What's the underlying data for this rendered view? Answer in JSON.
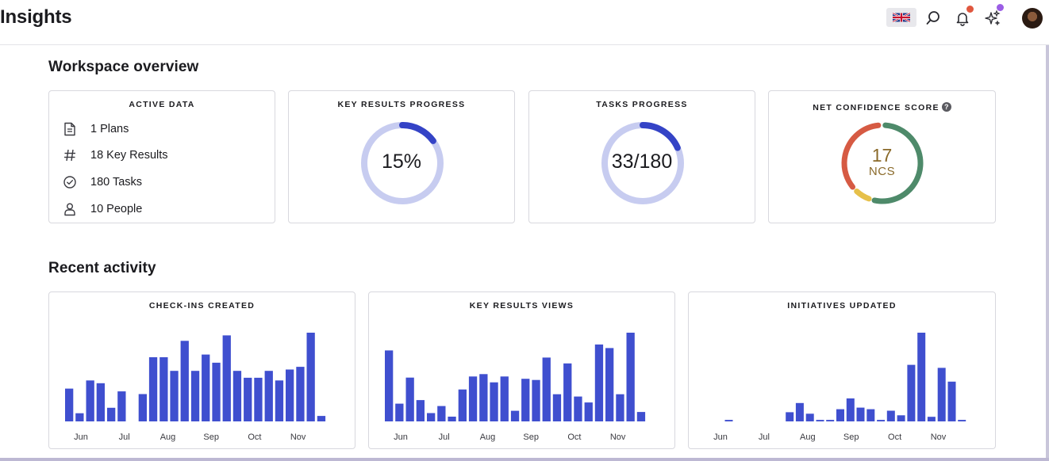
{
  "header": {
    "title": "Insights",
    "icons": {
      "language": "uk-flag-icon",
      "search": "search-icon",
      "notifications": "bell-icon",
      "ai": "sparkles-icon",
      "profile": "avatar"
    },
    "notification_dot_color": "#e0573e",
    "ai_dot_color": "#9b5de5"
  },
  "workspace_overview": {
    "title": "Workspace overview",
    "active_data": {
      "title": "ACTIVE DATA",
      "items": [
        {
          "icon": "document-icon",
          "label": "1 Plans"
        },
        {
          "icon": "hash-icon",
          "label": "18 Key Results"
        },
        {
          "icon": "check-circle-icon",
          "label": "180 Tasks"
        },
        {
          "icon": "person-icon",
          "label": "10 People"
        }
      ]
    },
    "key_results_progress": {
      "title": "KEY RESULTS PROGRESS",
      "value_text": "15%",
      "fraction": 0.15
    },
    "tasks_progress": {
      "title": "TASKS PROGRESS",
      "value_text": "33/180",
      "fraction": 0.1833
    },
    "net_confidence": {
      "title": "NET CONFIDENCE SCORE",
      "help_icon": "help-circle-icon",
      "help_glyph": "?",
      "score": "17",
      "unit": "NCS",
      "segments": [
        {
          "label": "green",
          "fraction": 0.52,
          "color": "#4e8a6a"
        },
        {
          "label": "yellow",
          "fraction": 0.06,
          "color": "#e6c04a"
        },
        {
          "label": "red",
          "fraction": 0.34,
          "color": "#d65a43"
        }
      ]
    }
  },
  "recent_activity": {
    "title": "Recent activity",
    "bar_color": "#3f4fcf",
    "charts": [
      {
        "id": "checkins",
        "title": "CHECK-INS CREATED",
        "months": [
          "Jun",
          "Jul",
          "Aug",
          "Sep",
          "Oct",
          "Nov"
        ],
        "values": [
          24,
          6,
          30,
          28,
          10,
          22,
          0,
          20,
          47,
          47,
          37,
          59,
          37,
          49,
          43,
          63,
          37,
          32,
          32,
          37,
          30,
          38,
          40,
          65,
          4
        ]
      },
      {
        "id": "kr_views",
        "title": "KEY RESULTS VIEWS",
        "months": [
          "Jun",
          "Jul",
          "Aug",
          "Sep",
          "Oct",
          "Nov"
        ],
        "values": [
          60,
          15,
          37,
          18,
          7,
          13,
          4,
          27,
          38,
          40,
          33,
          38,
          9,
          36,
          35,
          54,
          23,
          49,
          21,
          16,
          65,
          62,
          23,
          75,
          8
        ]
      },
      {
        "id": "initiatives",
        "title": "INITIATIVES UPDATED",
        "months": [
          "Jun",
          "Jul",
          "Aug",
          "Sep",
          "Oct",
          "Nov"
        ],
        "values": [
          0,
          0,
          1,
          0,
          0,
          0,
          0,
          0,
          6,
          12,
          5,
          1,
          1,
          8,
          15,
          9,
          8,
          1,
          7,
          4,
          37,
          58,
          3,
          35,
          26,
          1
        ]
      }
    ]
  }
}
